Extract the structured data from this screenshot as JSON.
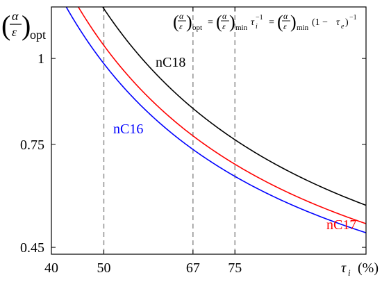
{
  "chart_data": {
    "type": "line",
    "ylabel": {
      "numerator": "α",
      "denominator": "ε",
      "subscript": "opt"
    },
    "xlabel": {
      "symbol": "τ",
      "subscript": "i",
      "unit": "(%)"
    },
    "formula": {
      "lhs_sub": "opt",
      "mid_sub": "min",
      "mid_factor": "τ",
      "mid_factor_sub": "i",
      "mid_factor_exp": "−1",
      "rhs_sub": "min",
      "rhs_factor_open": "(1 − ",
      "rhs_factor_sym": "τ",
      "rhs_factor_sub": "e",
      "rhs_factor_close": ")",
      "rhs_exp": "−1",
      "num": "α",
      "den": "ε",
      "eq": "="
    },
    "xlim": [
      40,
      100
    ],
    "ylim": [
      0.43,
      1.15
    ],
    "xticks": [
      40,
      50,
      67,
      75
    ],
    "xtick_labels": [
      "40",
      "50",
      "67",
      "75"
    ],
    "yticks": [
      0.45,
      0.75,
      1
    ],
    "ytick_labels": [
      "0.45",
      "0.75",
      "1"
    ],
    "vlines": [
      50,
      67,
      75
    ],
    "grid": false,
    "series": [
      {
        "name": "nC18",
        "color": "#000000",
        "k": 0.5725
      },
      {
        "name": "nC17",
        "color": "#ff0000",
        "k": 0.519
      },
      {
        "name": "nC16",
        "color": "#0000ff",
        "k": 0.4925
      }
    ]
  }
}
